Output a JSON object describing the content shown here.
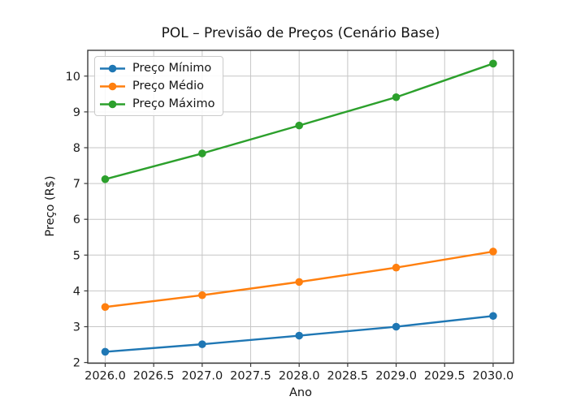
{
  "chart_data": {
    "type": "line",
    "title": "POL – Previsão de Preços (Cenário Base)",
    "xlabel": "Ano",
    "ylabel": "Preço (R$)",
    "x": [
      2026,
      2027,
      2028,
      2029,
      2030
    ],
    "series": [
      {
        "name": "Preço Mínimo",
        "color": "#1f77b4",
        "values": [
          2.3,
          2.51,
          2.75,
          3.0,
          3.3
        ]
      },
      {
        "name": "Preço Médio",
        "color": "#ff7f0e",
        "values": [
          3.55,
          3.88,
          4.25,
          4.65,
          5.1
        ]
      },
      {
        "name": "Preço Máximo",
        "color": "#2ca02c",
        "values": [
          7.12,
          7.84,
          8.62,
          9.41,
          10.35
        ]
      }
    ],
    "xlim": [
      2025.82,
      2030.21
    ],
    "ylim": [
      1.98,
      10.72
    ],
    "xticks": [
      2026.0,
      2026.5,
      2027.0,
      2027.5,
      2028.0,
      2028.5,
      2029.0,
      2029.5,
      2030.0
    ],
    "xtick_labels": [
      "2026.0",
      "2026.5",
      "2027.0",
      "2027.5",
      "2028.0",
      "2028.5",
      "2029.0",
      "2029.5",
      "2030.0"
    ],
    "yticks": [
      2,
      3,
      4,
      5,
      6,
      7,
      8,
      9,
      10
    ],
    "ytick_labels": [
      "2",
      "3",
      "4",
      "5",
      "6",
      "7",
      "8",
      "9",
      "10"
    ],
    "grid": true,
    "legend_position": "upper left",
    "colors": {
      "grid": "#c6c6c6",
      "spine": "#3b3b3b",
      "tick_text": "#1c1c1c",
      "background": "#ffffff"
    }
  }
}
